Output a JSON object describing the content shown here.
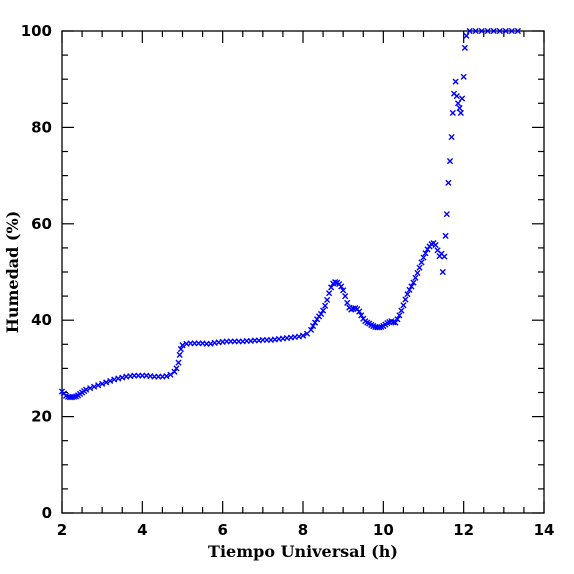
{
  "chart_data": {
    "type": "scatter",
    "xlabel": "Tiempo Universal (h)",
    "ylabel": "Humedad (%)",
    "xlim": [
      2,
      14
    ],
    "ylim": [
      0,
      100
    ],
    "x_ticks": [
      "2",
      "4",
      "6",
      "8",
      "10",
      "12",
      "14"
    ],
    "y_ticks": [
      "0",
      "20",
      "40",
      "60",
      "80",
      "100"
    ],
    "marker": "x",
    "marker_color": "#0000ff",
    "grid": false,
    "series": [
      {
        "points": [
          [
            2.0,
            25.2
          ],
          [
            2.05,
            24.8
          ],
          [
            2.1,
            24.3
          ],
          [
            2.15,
            24.1
          ],
          [
            2.2,
            24.0
          ],
          [
            2.25,
            24.0
          ],
          [
            2.3,
            24.1
          ],
          [
            2.35,
            24.2
          ],
          [
            2.4,
            24.4
          ],
          [
            2.45,
            24.7
          ],
          [
            2.5,
            25.0
          ],
          [
            2.55,
            25.3
          ],
          [
            2.6,
            25.6
          ],
          [
            2.7,
            25.9
          ],
          [
            2.8,
            26.2
          ],
          [
            2.9,
            26.5
          ],
          [
            3.0,
            26.8
          ],
          [
            3.1,
            27.1
          ],
          [
            3.2,
            27.4
          ],
          [
            3.3,
            27.7
          ],
          [
            3.4,
            27.9
          ],
          [
            3.5,
            28.1
          ],
          [
            3.6,
            28.3
          ],
          [
            3.7,
            28.4
          ],
          [
            3.8,
            28.5
          ],
          [
            3.9,
            28.5
          ],
          [
            4.0,
            28.5
          ],
          [
            4.1,
            28.5
          ],
          [
            4.2,
            28.4
          ],
          [
            4.3,
            28.3
          ],
          [
            4.4,
            28.3
          ],
          [
            4.5,
            28.3
          ],
          [
            4.6,
            28.4
          ],
          [
            4.7,
            28.7
          ],
          [
            4.8,
            29.3
          ],
          [
            4.85,
            30.0
          ],
          [
            4.9,
            31.2
          ],
          [
            4.93,
            32.8
          ],
          [
            4.96,
            34.0
          ],
          [
            5.0,
            34.8
          ],
          [
            5.1,
            35.1
          ],
          [
            5.2,
            35.2
          ],
          [
            5.3,
            35.2
          ],
          [
            5.4,
            35.2
          ],
          [
            5.5,
            35.2
          ],
          [
            5.6,
            35.1
          ],
          [
            5.7,
            35.1
          ],
          [
            5.8,
            35.3
          ],
          [
            5.9,
            35.4
          ],
          [
            6.0,
            35.5
          ],
          [
            6.1,
            35.6
          ],
          [
            6.2,
            35.6
          ],
          [
            6.3,
            35.6
          ],
          [
            6.4,
            35.6
          ],
          [
            6.5,
            35.6
          ],
          [
            6.6,
            35.7
          ],
          [
            6.7,
            35.7
          ],
          [
            6.8,
            35.8
          ],
          [
            6.9,
            35.8
          ],
          [
            7.0,
            35.9
          ],
          [
            7.1,
            35.9
          ],
          [
            7.2,
            35.9
          ],
          [
            7.3,
            36.0
          ],
          [
            7.4,
            36.1
          ],
          [
            7.5,
            36.2
          ],
          [
            7.6,
            36.3
          ],
          [
            7.7,
            36.4
          ],
          [
            7.8,
            36.5
          ],
          [
            7.9,
            36.6
          ],
          [
            8.0,
            36.8
          ],
          [
            8.1,
            37.2
          ],
          [
            8.2,
            38.0
          ],
          [
            8.25,
            38.8
          ],
          [
            8.3,
            39.5
          ],
          [
            8.35,
            40.2
          ],
          [
            8.4,
            40.8
          ],
          [
            8.45,
            41.3
          ],
          [
            8.5,
            42.0
          ],
          [
            8.55,
            43.0
          ],
          [
            8.6,
            44.2
          ],
          [
            8.65,
            45.6
          ],
          [
            8.7,
            46.8
          ],
          [
            8.75,
            47.6
          ],
          [
            8.8,
            47.9
          ],
          [
            8.85,
            47.8
          ],
          [
            8.9,
            47.5
          ],
          [
            8.95,
            47.0
          ],
          [
            9.0,
            46.2
          ],
          [
            9.05,
            45.0
          ],
          [
            9.1,
            43.6
          ],
          [
            9.15,
            42.6
          ],
          [
            9.2,
            42.2
          ],
          [
            9.25,
            42.4
          ],
          [
            9.3,
            42.5
          ],
          [
            9.35,
            42.3
          ],
          [
            9.4,
            41.8
          ],
          [
            9.45,
            41.0
          ],
          [
            9.5,
            40.3
          ],
          [
            9.55,
            39.8
          ],
          [
            9.6,
            39.5
          ],
          [
            9.65,
            39.3
          ],
          [
            9.7,
            39.0
          ],
          [
            9.75,
            38.8
          ],
          [
            9.8,
            38.6
          ],
          [
            9.85,
            38.5
          ],
          [
            9.9,
            38.5
          ],
          [
            9.95,
            38.6
          ],
          [
            10.0,
            38.8
          ],
          [
            10.05,
            39.1
          ],
          [
            10.1,
            39.4
          ],
          [
            10.15,
            39.6
          ],
          [
            10.2,
            39.8
          ],
          [
            10.25,
            39.6
          ],
          [
            10.3,
            39.5
          ],
          [
            10.35,
            40.2
          ],
          [
            10.4,
            41.0
          ],
          [
            10.45,
            42.0
          ],
          [
            10.5,
            43.1
          ],
          [
            10.55,
            44.3
          ],
          [
            10.6,
            45.4
          ],
          [
            10.65,
            46.3
          ],
          [
            10.7,
            47.0
          ],
          [
            10.75,
            47.8
          ],
          [
            10.8,
            48.8
          ],
          [
            10.85,
            49.8
          ],
          [
            10.9,
            50.9
          ],
          [
            10.95,
            52.0
          ],
          [
            11.0,
            53.0
          ],
          [
            11.05,
            53.9
          ],
          [
            11.1,
            54.7
          ],
          [
            11.15,
            55.3
          ],
          [
            11.2,
            55.8
          ],
          [
            11.25,
            56.0
          ],
          [
            11.3,
            55.6
          ],
          [
            11.35,
            54.5
          ],
          [
            11.4,
            53.3
          ],
          [
            11.45,
            53.8
          ],
          [
            11.48,
            50.0
          ],
          [
            11.52,
            53.2
          ],
          [
            11.55,
            57.5
          ],
          [
            11.58,
            62.0
          ],
          [
            11.62,
            68.5
          ],
          [
            11.66,
            73.0
          ],
          [
            11.7,
            78.0
          ],
          [
            11.73,
            83.0
          ],
          [
            11.76,
            87.0
          ],
          [
            11.8,
            89.5
          ],
          [
            11.83,
            86.5
          ],
          [
            11.86,
            85.0
          ],
          [
            11.9,
            84.0
          ],
          [
            11.93,
            83.0
          ],
          [
            11.96,
            86.0
          ],
          [
            12.0,
            90.5
          ],
          [
            12.03,
            96.5
          ],
          [
            12.07,
            99.0
          ],
          [
            12.15,
            100.0
          ],
          [
            12.3,
            100.0
          ],
          [
            12.45,
            100.0
          ],
          [
            12.6,
            100.0
          ],
          [
            12.75,
            100.0
          ],
          [
            12.9,
            100.0
          ],
          [
            13.05,
            100.0
          ],
          [
            13.2,
            100.0
          ],
          [
            13.35,
            100.0
          ]
        ]
      }
    ]
  }
}
